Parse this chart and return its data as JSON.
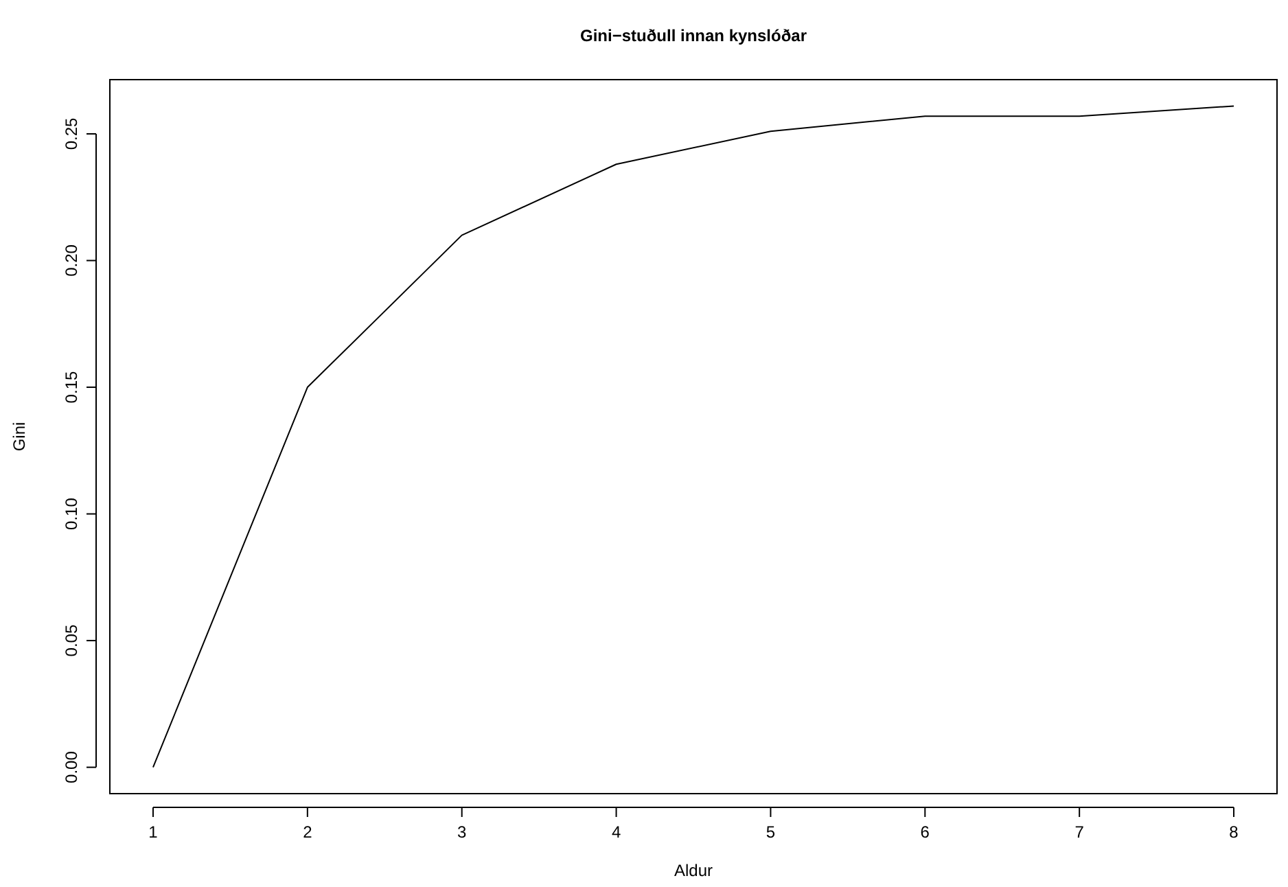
{
  "chart_data": {
    "type": "line",
    "title": "Gini−stuðull innan kynslóðar",
    "xlabel": "Aldur",
    "ylabel": "Gini",
    "x": [
      1,
      2,
      3,
      4,
      5,
      6,
      7,
      8
    ],
    "series": [
      {
        "color": "#000000",
        "values": [
          0,
          0.15,
          0.21,
          0.238,
          0.251,
          0.257,
          0.257,
          0.261
        ]
      }
    ],
    "xlim": [
      0.72,
      8.28
    ],
    "xticks": [
      1,
      2,
      3,
      4,
      5,
      6,
      7,
      8
    ],
    "ylim": [
      -0.0104,
      0.2714
    ],
    "yticks": [
      {
        "value": 0,
        "label": "0.00"
      },
      {
        "value": 0.05,
        "label": "0.05"
      },
      {
        "value": 0.1,
        "label": "0.10"
      },
      {
        "value": 0.15,
        "label": "0.15"
      },
      {
        "value": 0.2,
        "label": "0.20"
      },
      {
        "value": 0.25,
        "label": "0.25"
      }
    ],
    "grid": false,
    "marker": "none",
    "line_style": "solid"
  }
}
